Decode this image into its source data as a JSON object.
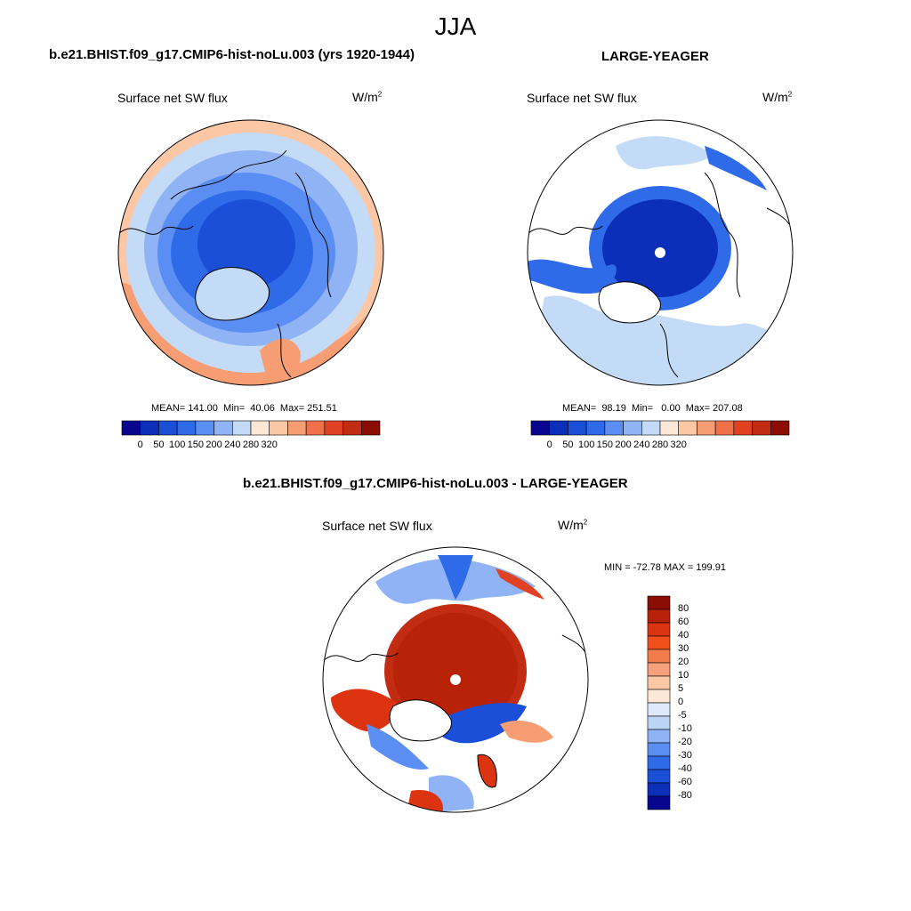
{
  "figure": {
    "season_title": "JJA"
  },
  "panels": [
    {
      "title": "b.e21.BHIST.f09_g17.CMIP6-hist-noLu.003 (yrs 1920-1944)",
      "variable_label": "Surface net SW flux",
      "units_base": "W/m",
      "units_exp": "2",
      "stats": "MEAN= 141.00  Min=  40.06  Max= 251.51",
      "colorbar": {
        "tick_labels": [
          "0",
          "50",
          "100",
          "150",
          "200",
          "240",
          "280",
          "320"
        ],
        "colors": [
          "#08068f",
          "#0b2fb8",
          "#1c4fd8",
          "#2f6ae8",
          "#5b8ef2",
          "#8fb3f4",
          "#c4dbf7",
          "#fde8d8",
          "#fbc7a5",
          "#f79d74",
          "#f0704a",
          "#e04123",
          "#c12c12",
          "#8b0d04"
        ]
      }
    },
    {
      "title": "LARGE-YEAGER",
      "variable_label": "Surface net SW flux",
      "units_base": "W/m",
      "units_exp": "2",
      "stats": "MEAN=  98.19  Min=   0.00  Max= 207.08",
      "colorbar": {
        "tick_labels": [
          "0",
          "50",
          "100",
          "150",
          "200",
          "240",
          "280",
          "320"
        ],
        "colors": [
          "#08068f",
          "#0b2fb8",
          "#1c4fd8",
          "#2f6ae8",
          "#5b8ef2",
          "#8fb3f4",
          "#c4dbf7",
          "#fde8d8",
          "#fbc7a5",
          "#f79d74",
          "#f0704a",
          "#e04123",
          "#c12c12",
          "#8b0d04"
        ]
      }
    },
    {
      "title": "b.e21.BHIST.f09_g17.CMIP6-hist-noLu.003 - LARGE-YEAGER",
      "variable_label": "Surface net SW flux",
      "units_base": "W/m",
      "units_exp": "2",
      "stats": "MIN = -72.78 MAX = 199.91",
      "colorbar": {
        "tick_labels": [
          "80",
          "60",
          "40",
          "30",
          "20",
          "10",
          "5",
          "0",
          "-5",
          "-10",
          "-20",
          "-30",
          "-40",
          "-60",
          "-80"
        ],
        "colors": [
          "#8b0d04",
          "#b82208",
          "#dc3410",
          "#f0501c",
          "#f47c4c",
          "#f7a07c",
          "#fbc7a5",
          "#fde8d8",
          "#dde9f8",
          "#bcd4f6",
          "#8fb3f4",
          "#5b8ef2",
          "#2f6ae8",
          "#1c4fd8",
          "#0b2fb8",
          "#08068f"
        ]
      }
    }
  ],
  "colors": {
    "ocean_fill_low": "#1c4fd8",
    "ocean_fill_high": "#f79d74",
    "land_fill": "#ffffff"
  }
}
